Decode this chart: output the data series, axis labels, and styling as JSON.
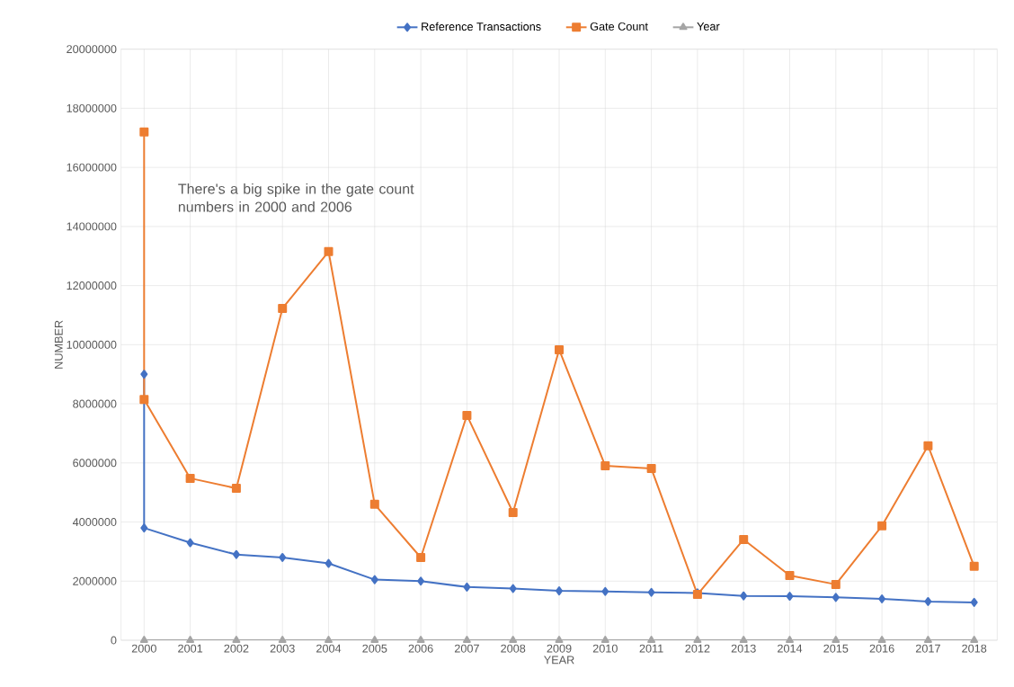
{
  "chart_data": {
    "type": "line",
    "xlabel": "YEAR",
    "ylabel": "NUMBER",
    "annotations": [
      "There's a big spike in the gate count numbers in 2000 and 2006"
    ],
    "series": [
      {
        "name": "Reference Transactions",
        "color": "#4472c4",
        "marker": "diamond",
        "x": [
          2000,
          2000,
          2001,
          2002,
          2003,
          2004,
          2005,
          2006,
          2007,
          2008,
          2009,
          2010,
          2011,
          2012,
          2013,
          2014,
          2015,
          2016,
          2017,
          2018
        ],
        "values": [
          9000000,
          3800000,
          3300000,
          2900000,
          2800000,
          2600000,
          2050000,
          2000000,
          1800000,
          1750000,
          1670000,
          1650000,
          1620000,
          1600000,
          1500000,
          1490000,
          1450000,
          1400000,
          1310000,
          1280000
        ]
      },
      {
        "name": "Gate Count",
        "color": "#ed7d31",
        "marker": "square",
        "x": [
          2000,
          2000,
          2001,
          2002,
          2003,
          2004,
          2005,
          2006,
          2007,
          2008,
          2009,
          2010,
          2011,
          2012,
          2013,
          2014,
          2015,
          2016,
          2017,
          2018
        ],
        "values": [
          17200000,
          8150000,
          5480000,
          5140000,
          11230000,
          13150000,
          4600000,
          2800000,
          7610000,
          4320000,
          9830000,
          5900000,
          5810000,
          1550000,
          3410000,
          2190000,
          1890000,
          3870000,
          6580000,
          2500000
        ]
      },
      {
        "name": "Year",
        "color": "#a5a5a5",
        "marker": "triangle",
        "x": [
          2000,
          2001,
          2002,
          2003,
          2004,
          2005,
          2006,
          2007,
          2008,
          2009,
          2010,
          2011,
          2012,
          2013,
          2014,
          2015,
          2016,
          2017,
          2018
        ],
        "values": [
          0,
          0,
          0,
          0,
          0,
          0,
          0,
          0,
          0,
          0,
          0,
          0,
          0,
          0,
          0,
          0,
          0,
          0,
          0
        ]
      }
    ],
    "xlim": [
      1999.5,
      2018.5
    ],
    "xticks": [
      2000,
      2001,
      2002,
      2003,
      2004,
      2005,
      2006,
      2007,
      2008,
      2009,
      2010,
      2011,
      2012,
      2013,
      2014,
      2015,
      2016,
      2017,
      2018
    ],
    "ylim": [
      0,
      20000000
    ],
    "yticks": [
      0,
      2000000,
      4000000,
      6000000,
      8000000,
      10000000,
      12000000,
      14000000,
      16000000,
      18000000,
      20000000
    ],
    "grid": true,
    "legend": "top"
  }
}
